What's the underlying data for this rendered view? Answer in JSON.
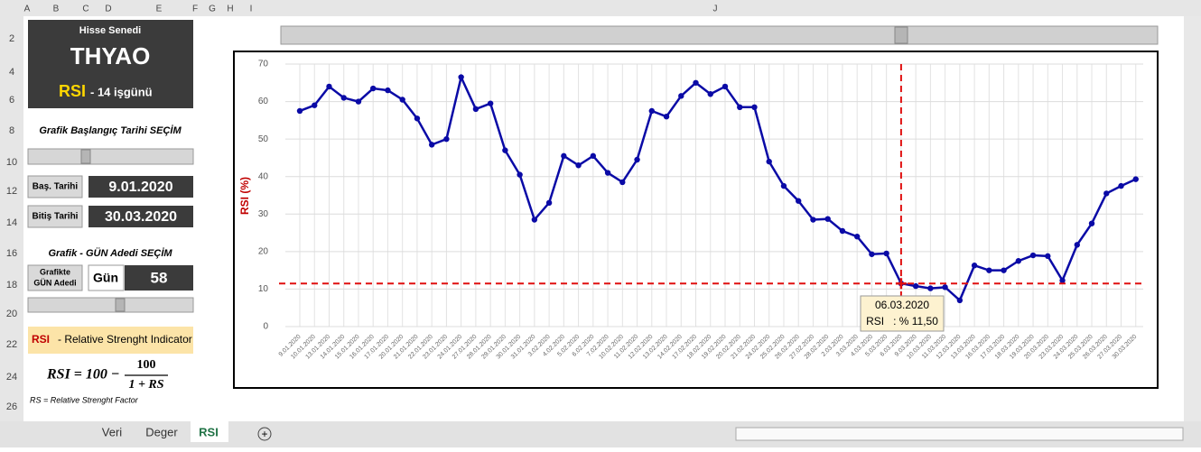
{
  "ui": {
    "column_headers": [
      "A",
      "B",
      "C",
      "D",
      "E",
      "F",
      "G",
      "H",
      "I",
      "J"
    ],
    "row_numbers": [
      2,
      4,
      6,
      8,
      10,
      12,
      14,
      16,
      18,
      20,
      22,
      24,
      26
    ],
    "panel": {
      "subtitle": "Hisse Senedi",
      "ticker": "THYAO",
      "indicator": "RSI",
      "period": "-  14 işgünü"
    },
    "start_section": {
      "title": "Grafik Başlangıç Tarihi SEÇİM",
      "start_label": "Baş. Tarihi",
      "start_date": "9.01.2020",
      "end_label": "Bitiş Tarihi",
      "end_date": "30.03.2020"
    },
    "days_section": {
      "title": "Grafik -  GÜN Adedi  SEÇİM",
      "label_line1": "Grafikte",
      "label_line2": "GÜN Adedi",
      "unit": "Gün",
      "count": 58
    },
    "info": {
      "title_abbr": "RSI",
      "title_rest": "- Relative Strenght Indicator",
      "formula_lhs": "RSI = 100 −",
      "numerator": "100",
      "denominator": "1 + RS",
      "footnote": "RS = Relative Strenght Factor"
    },
    "tabs": [
      "Veri",
      "Deger",
      "RSI"
    ],
    "active_tab": 2
  },
  "chart_data": {
    "type": "line",
    "y_label": "RSI (%)",
    "categories": [
      "9.01.2020",
      "10.01.2020",
      "13.01.2020",
      "14.01.2020",
      "15.01.2020",
      "16.01.2020",
      "17.01.2020",
      "20.01.2020",
      "21.01.2020",
      "22.01.2020",
      "23.01.2020",
      "24.01.2020",
      "27.01.2020",
      "28.01.2020",
      "29.01.2020",
      "30.01.2020",
      "31.01.2020",
      "3.02.2020",
      "4.02.2020",
      "5.02.2020",
      "6.02.2020",
      "7.02.2020",
      "10.02.2020",
      "11.02.2020",
      "12.02.2020",
      "13.02.2020",
      "14.02.2020",
      "17.02.2020",
      "18.02.2020",
      "19.02.2020",
      "20.02.2020",
      "21.02.2020",
      "24.02.2020",
      "25.02.2020",
      "26.02.2020",
      "27.02.2020",
      "28.02.2020",
      "2.03.2020",
      "3.03.2020",
      "4.03.2020",
      "5.03.2020",
      "6.03.2020",
      "9.03.2020",
      "10.03.2020",
      "11.03.2020",
      "12.03.2020",
      "13.03.2020",
      "16.03.2020",
      "17.03.2020",
      "18.03.2020",
      "19.03.2020",
      "20.03.2020",
      "23.03.2020",
      "24.03.2020",
      "25.03.2020",
      "26.03.2020",
      "27.03.2020",
      "30.03.2020"
    ],
    "values": [
      57.5,
      59,
      64,
      61,
      60,
      63.5,
      63,
      60.5,
      55.5,
      48.5,
      50,
      66.5,
      58,
      59.5,
      47,
      40.5,
      28.5,
      33,
      45.5,
      43,
      45.5,
      41,
      38.5,
      44.5,
      57.5,
      56,
      61.5,
      65,
      62,
      64,
      58.5,
      58.5,
      44,
      37.5,
      33.5,
      28.5,
      28.7,
      25.5,
      24,
      19.3,
      19.5,
      11.5,
      10.8,
      10.2,
      10.5,
      7,
      16.3,
      15,
      15,
      17.5,
      19,
      18.8,
      12.3,
      21.8,
      27.5,
      35.5,
      37.5,
      39.3
    ],
    "color": "#0a0aa6",
    "ylim": [
      0,
      70
    ],
    "yticks": [
      0,
      10,
      20,
      30,
      40,
      50,
      60,
      70
    ],
    "grid": true,
    "crosshair": {
      "date": "06.03.2020",
      "label": "RSI   : % 11,50",
      "value": 11.5,
      "color": "#e01010"
    }
  }
}
